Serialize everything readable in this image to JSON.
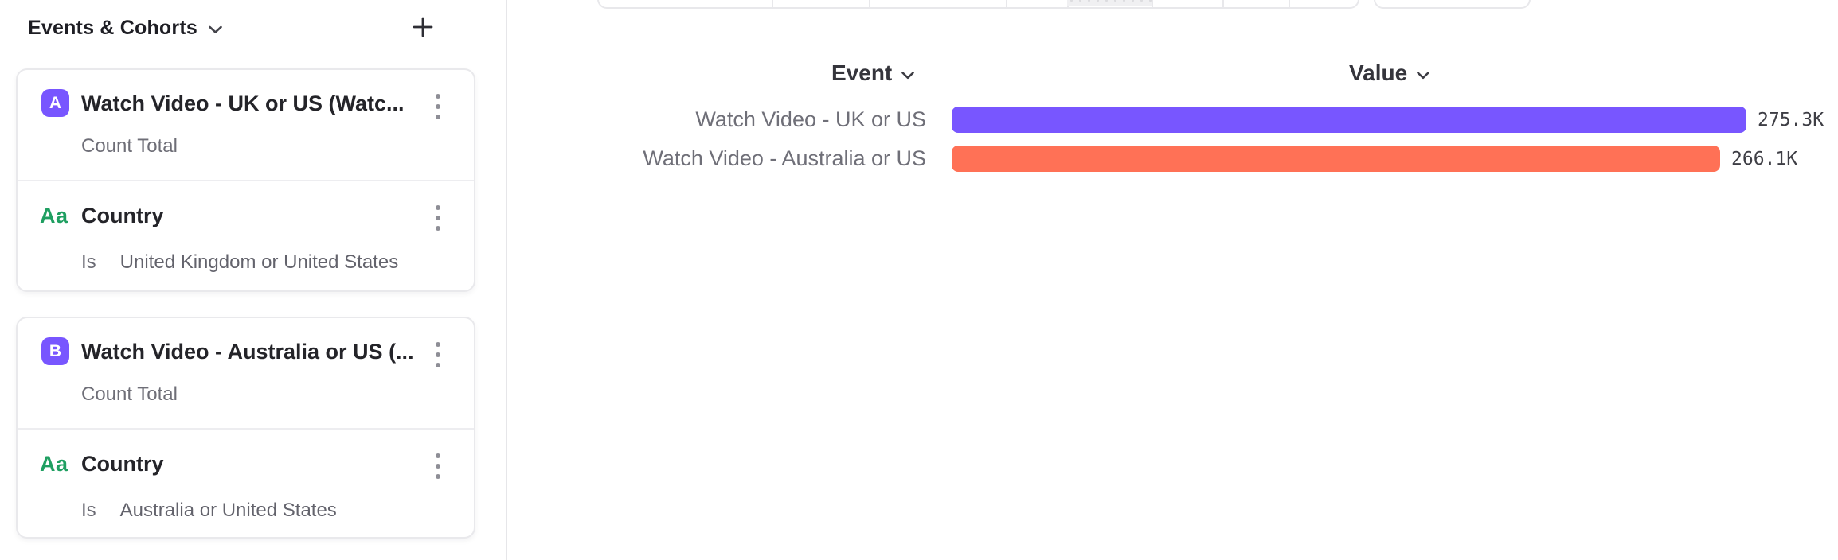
{
  "sidebar": {
    "title": "Events & Cohorts",
    "cards": [
      {
        "badge": "A",
        "title": "Watch Video - UK or US (Watc...",
        "subtitle": "Count Total",
        "property_icon": "Aa",
        "property_name": "Country",
        "operator": "Is",
        "operand": "United Kingdom or United States"
      },
      {
        "badge": "B",
        "title": "Watch Video - Australia or US (...",
        "subtitle": "Count Total",
        "property_icon": "Aa",
        "property_name": "Country",
        "operator": "Is",
        "operand": "Australia or United States"
      }
    ]
  },
  "table": {
    "event_header": "Event",
    "value_header": "Value"
  },
  "chart_data": {
    "type": "bar",
    "orientation": "horizontal",
    "title": "",
    "categories": [
      "Watch Video - UK or US",
      "Watch Video - Australia or US"
    ],
    "values": [
      275300,
      266100
    ],
    "value_labels": [
      "275.3K",
      "266.1K"
    ],
    "colors": [
      "#7856FF",
      "#FF7156"
    ],
    "xlabel": "Value",
    "ylabel": "Event",
    "legend": false,
    "grid": false
  },
  "colors": {
    "accent_purple": "#7856FF",
    "accent_orange": "#FF7156",
    "property_green": "#1f9f61",
    "border_gray": "#e8e8eb"
  }
}
